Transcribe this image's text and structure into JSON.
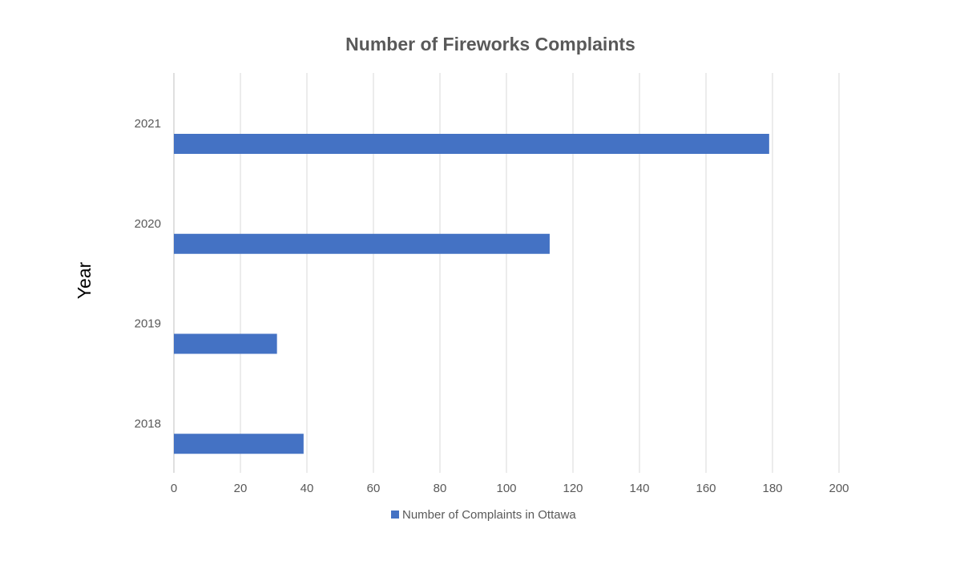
{
  "chart_data": {
    "type": "bar",
    "orientation": "horizontal",
    "title": "Number of Fireworks Complaints",
    "xlabel": "",
    "ylabel": "Year",
    "categories": [
      "2018",
      "2019",
      "2020",
      "2021"
    ],
    "series": [
      {
        "name": "Number of Complaints in Ottawa",
        "values": [
          39,
          31,
          113,
          179
        ],
        "color": "#4472c4"
      }
    ],
    "xlim": [
      0,
      200
    ],
    "xticks": [
      0,
      20,
      40,
      60,
      80,
      100,
      120,
      140,
      160,
      180,
      200
    ],
    "grid": true,
    "legend_position": "bottom"
  }
}
